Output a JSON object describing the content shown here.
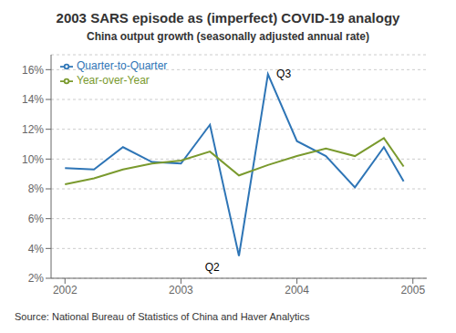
{
  "chart_data": {
    "type": "line",
    "title": "2003 SARS episode as (imperfect) COVID-19 analogy",
    "subtitle": "China output growth (seasonally adjusted annual rate)",
    "source": "Source: National Bureau of Statistics of China and Haver Analytics",
    "x": [
      2002.0,
      2002.25,
      2002.5,
      2002.75,
      2003.0,
      2003.25,
      2003.5,
      2003.75,
      2004.0,
      2004.25,
      2004.5,
      2004.75,
      2004.92
    ],
    "series": [
      {
        "name": "Quarter-to-Quarter",
        "color": "#2e75b6",
        "values": [
          9.4,
          9.3,
          10.8,
          9.8,
          9.7,
          12.3,
          3.5,
          15.7,
          11.2,
          10.2,
          8.1,
          10.8,
          8.5
        ]
      },
      {
        "name": "Year-over-Year",
        "color": "#7a9a2e",
        "values": [
          8.3,
          8.7,
          9.3,
          9.7,
          9.9,
          10.5,
          8.9,
          9.6,
          10.2,
          10.7,
          10.2,
          11.4,
          9.5
        ]
      }
    ],
    "xlim": [
      2001.88,
      2005.12
    ],
    "xticks": [
      2002,
      2003,
      2004,
      2005
    ],
    "ylim": [
      2,
      17
    ],
    "yticks": [
      {
        "value": 2,
        "label": "2%"
      },
      {
        "value": 4,
        "label": "4%"
      },
      {
        "value": 6,
        "label": "6%"
      },
      {
        "value": 8,
        "label": "8%"
      },
      {
        "value": 10,
        "label": "10%"
      },
      {
        "value": 12,
        "label": "12%"
      },
      {
        "value": 14,
        "label": "14%"
      },
      {
        "value": 16,
        "label": "16%"
      }
    ],
    "annotations": [
      {
        "text": "Q2",
        "x": 2003.27,
        "y": 3.5
      },
      {
        "text": "Q3",
        "x": 2003.76,
        "y": 15.7
      }
    ],
    "grid": true,
    "legend": "upper left"
  }
}
